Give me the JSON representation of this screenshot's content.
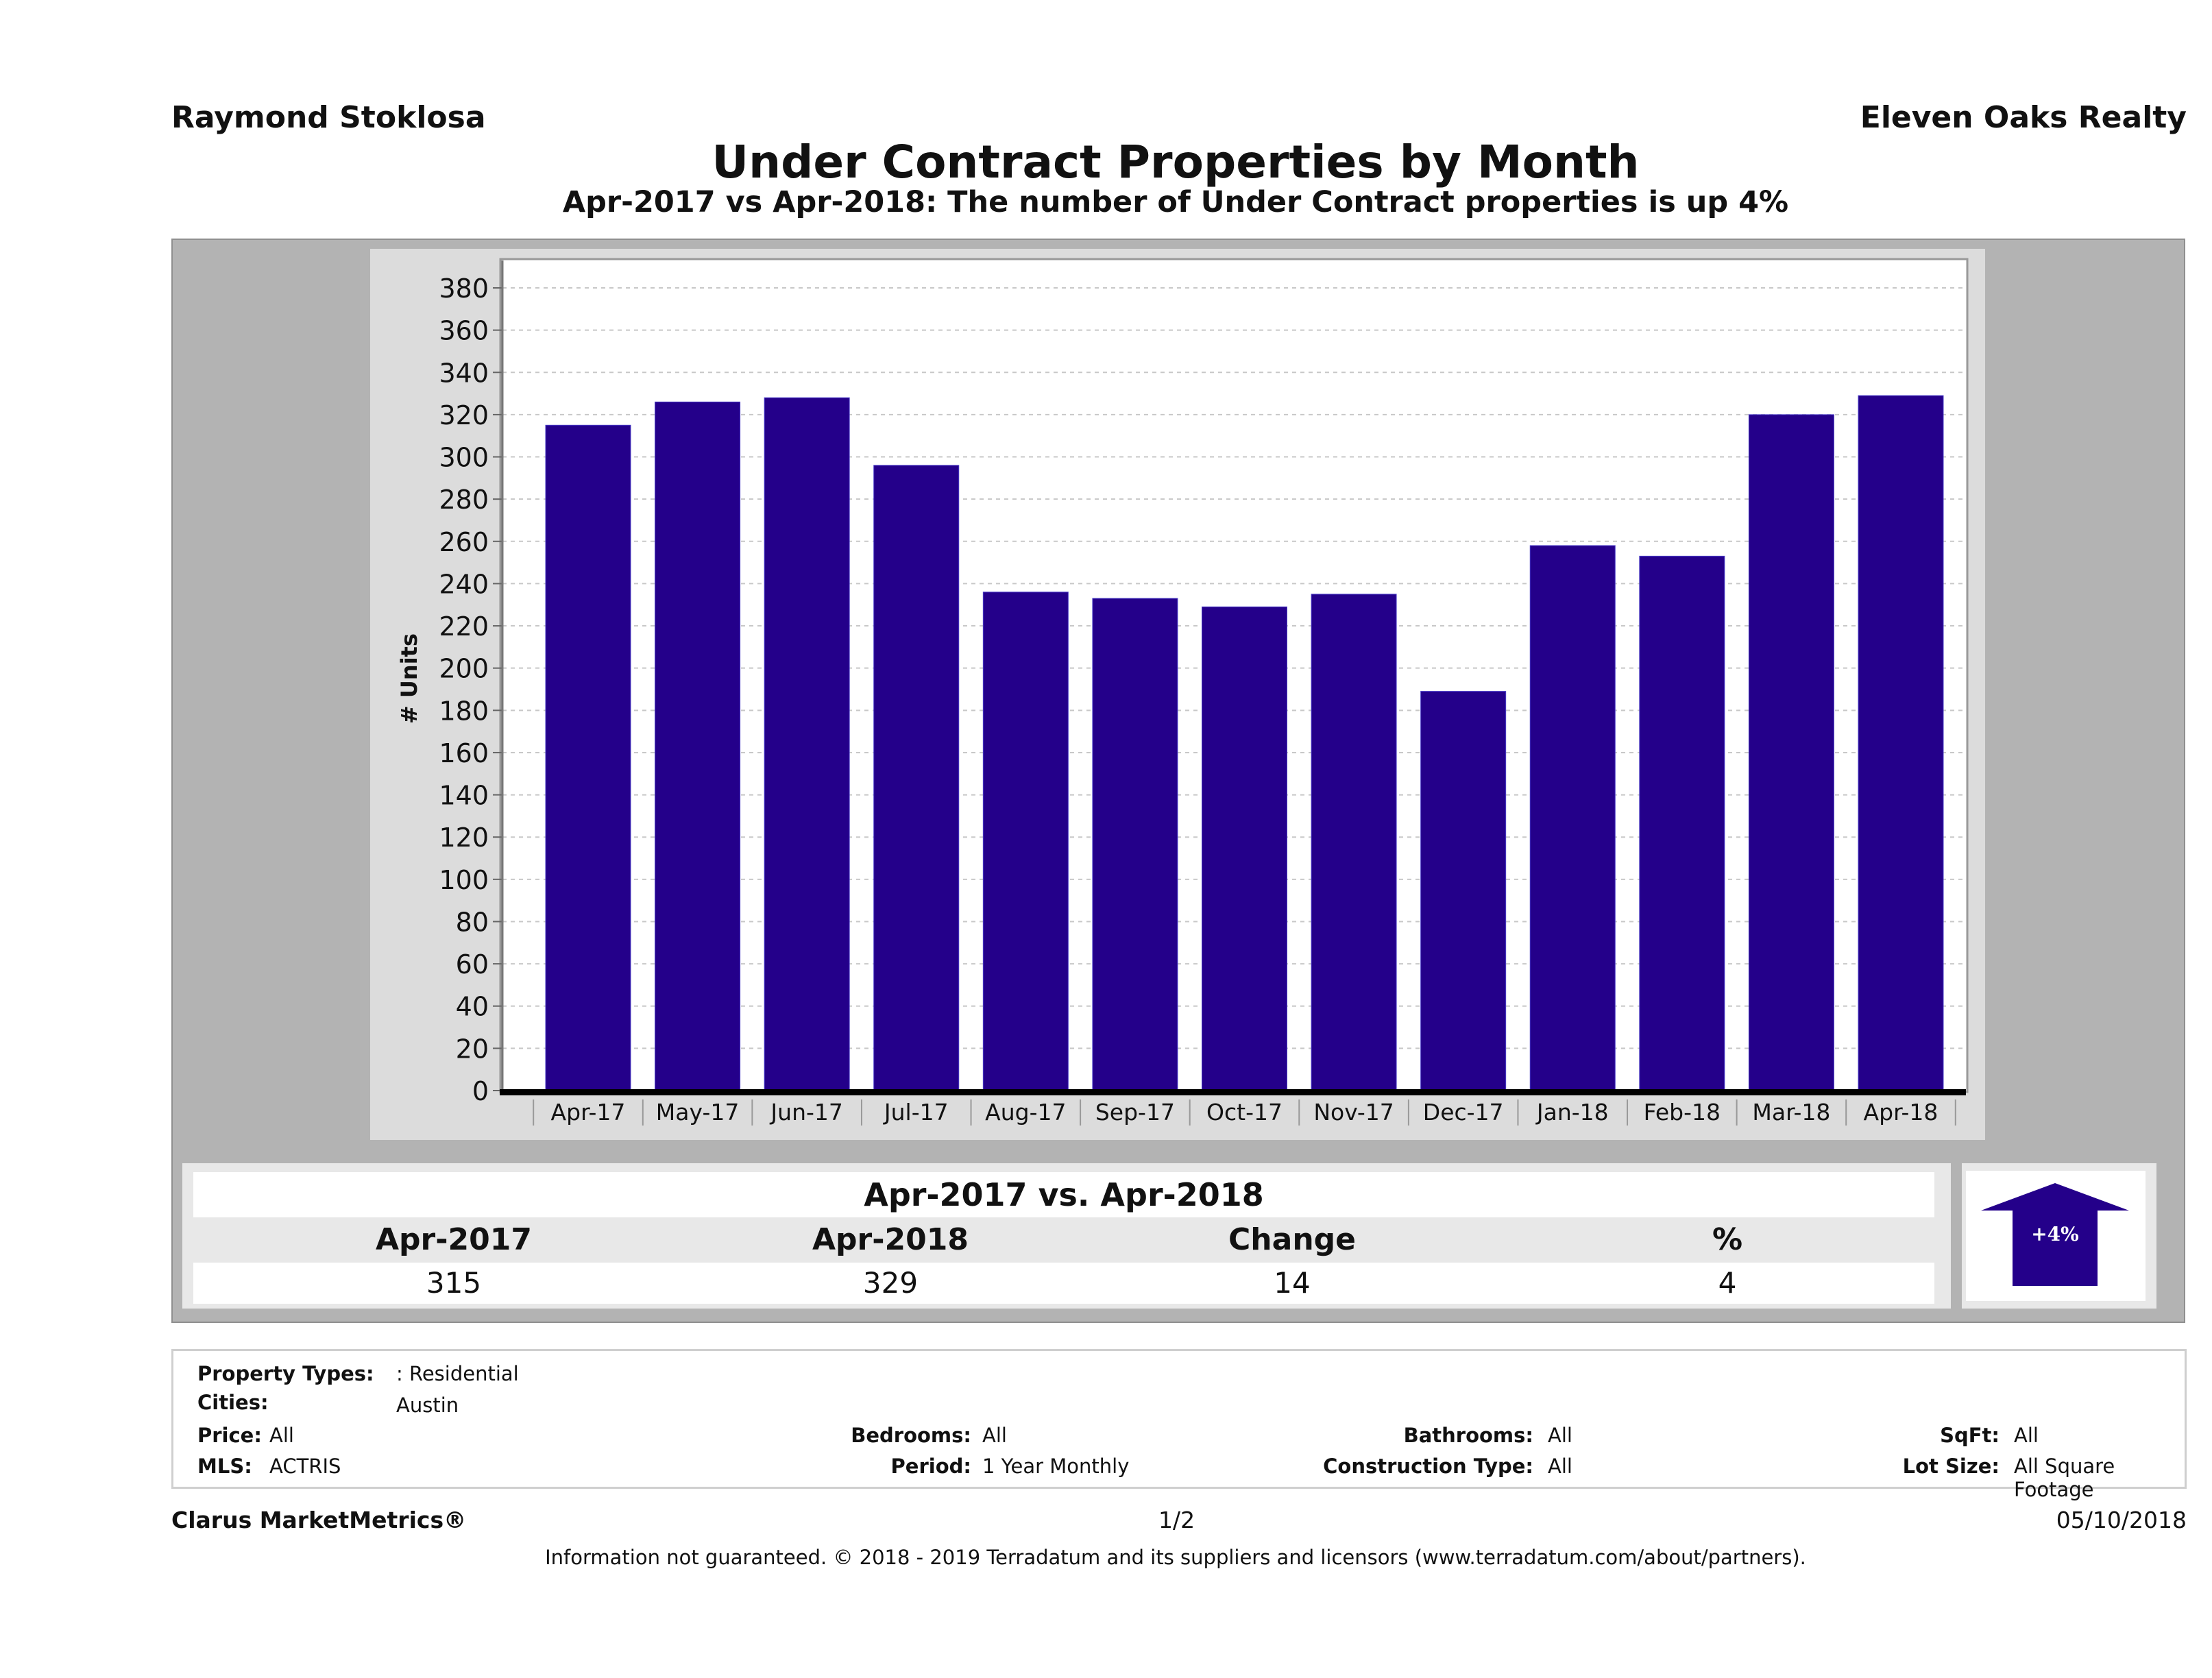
{
  "header": {
    "agent_name": "Raymond Stoklosa",
    "brokerage": "Eleven Oaks Realty",
    "title": "Under Contract Properties by Month",
    "subtitle": "Apr-2017 vs Apr-2018: The number of Under Contract  properties is up 4%"
  },
  "colors": {
    "bar": "#24008a",
    "panel": "#b3b3b3",
    "chart_bg": "#dcdcdc",
    "plot_bg": "#ffffff",
    "grid": "#c8c8c8"
  },
  "chart_data": {
    "type": "bar",
    "title": "Under Contract Properties by Month",
    "xlabel": "",
    "ylabel": "# Units",
    "ylim": [
      0,
      390
    ],
    "yticks": [
      0,
      20,
      40,
      60,
      80,
      100,
      120,
      140,
      160,
      180,
      200,
      220,
      240,
      260,
      280,
      300,
      320,
      340,
      360,
      380
    ],
    "grid": true,
    "legend": "none",
    "categories": [
      "Apr-17",
      "May-17",
      "Jun-17",
      "Jul-17",
      "Aug-17",
      "Sep-17",
      "Oct-17",
      "Nov-17",
      "Dec-17",
      "Jan-18",
      "Feb-18",
      "Mar-18",
      "Apr-18"
    ],
    "values": [
      315,
      326,
      328,
      296,
      236,
      233,
      229,
      235,
      189,
      258,
      253,
      320,
      329
    ]
  },
  "summary": {
    "title": "Apr-2017 vs. Apr-2018",
    "headers": [
      "Apr-2017",
      "Apr-2018",
      "Change",
      "%"
    ],
    "values": [
      "315",
      "329",
      "14",
      "4"
    ],
    "indicator": {
      "direction": "up",
      "label": "+4%"
    }
  },
  "filters": {
    "property_types_label": "Property Types:",
    "property_types_value": ": Residential",
    "cities_label": "Cities:",
    "cities_value": "Austin",
    "price_label": "Price:",
    "price_value": "All",
    "bedrooms_label": "Bedrooms:",
    "bedrooms_value": "All",
    "bathrooms_label": "Bathrooms:",
    "bathrooms_value": "All",
    "sqft_label": "SqFt:",
    "sqft_value": "All",
    "mls_label": "MLS:",
    "mls_value": "ACTRIS",
    "period_label": "Period:",
    "period_value": "1 Year Monthly",
    "construction_label": "Construction Type:",
    "construction_value": "All",
    "lot_size_label": "Lot Size:",
    "lot_size_value": "All Square Footage"
  },
  "footer": {
    "product": "Clarus MarketMetrics®",
    "page": "1/2",
    "date": "05/10/2018",
    "disclaimer": "Information not guaranteed. © 2018 - 2019 Terradatum and its suppliers and licensors (www.terradatum.com/about/partners)."
  }
}
